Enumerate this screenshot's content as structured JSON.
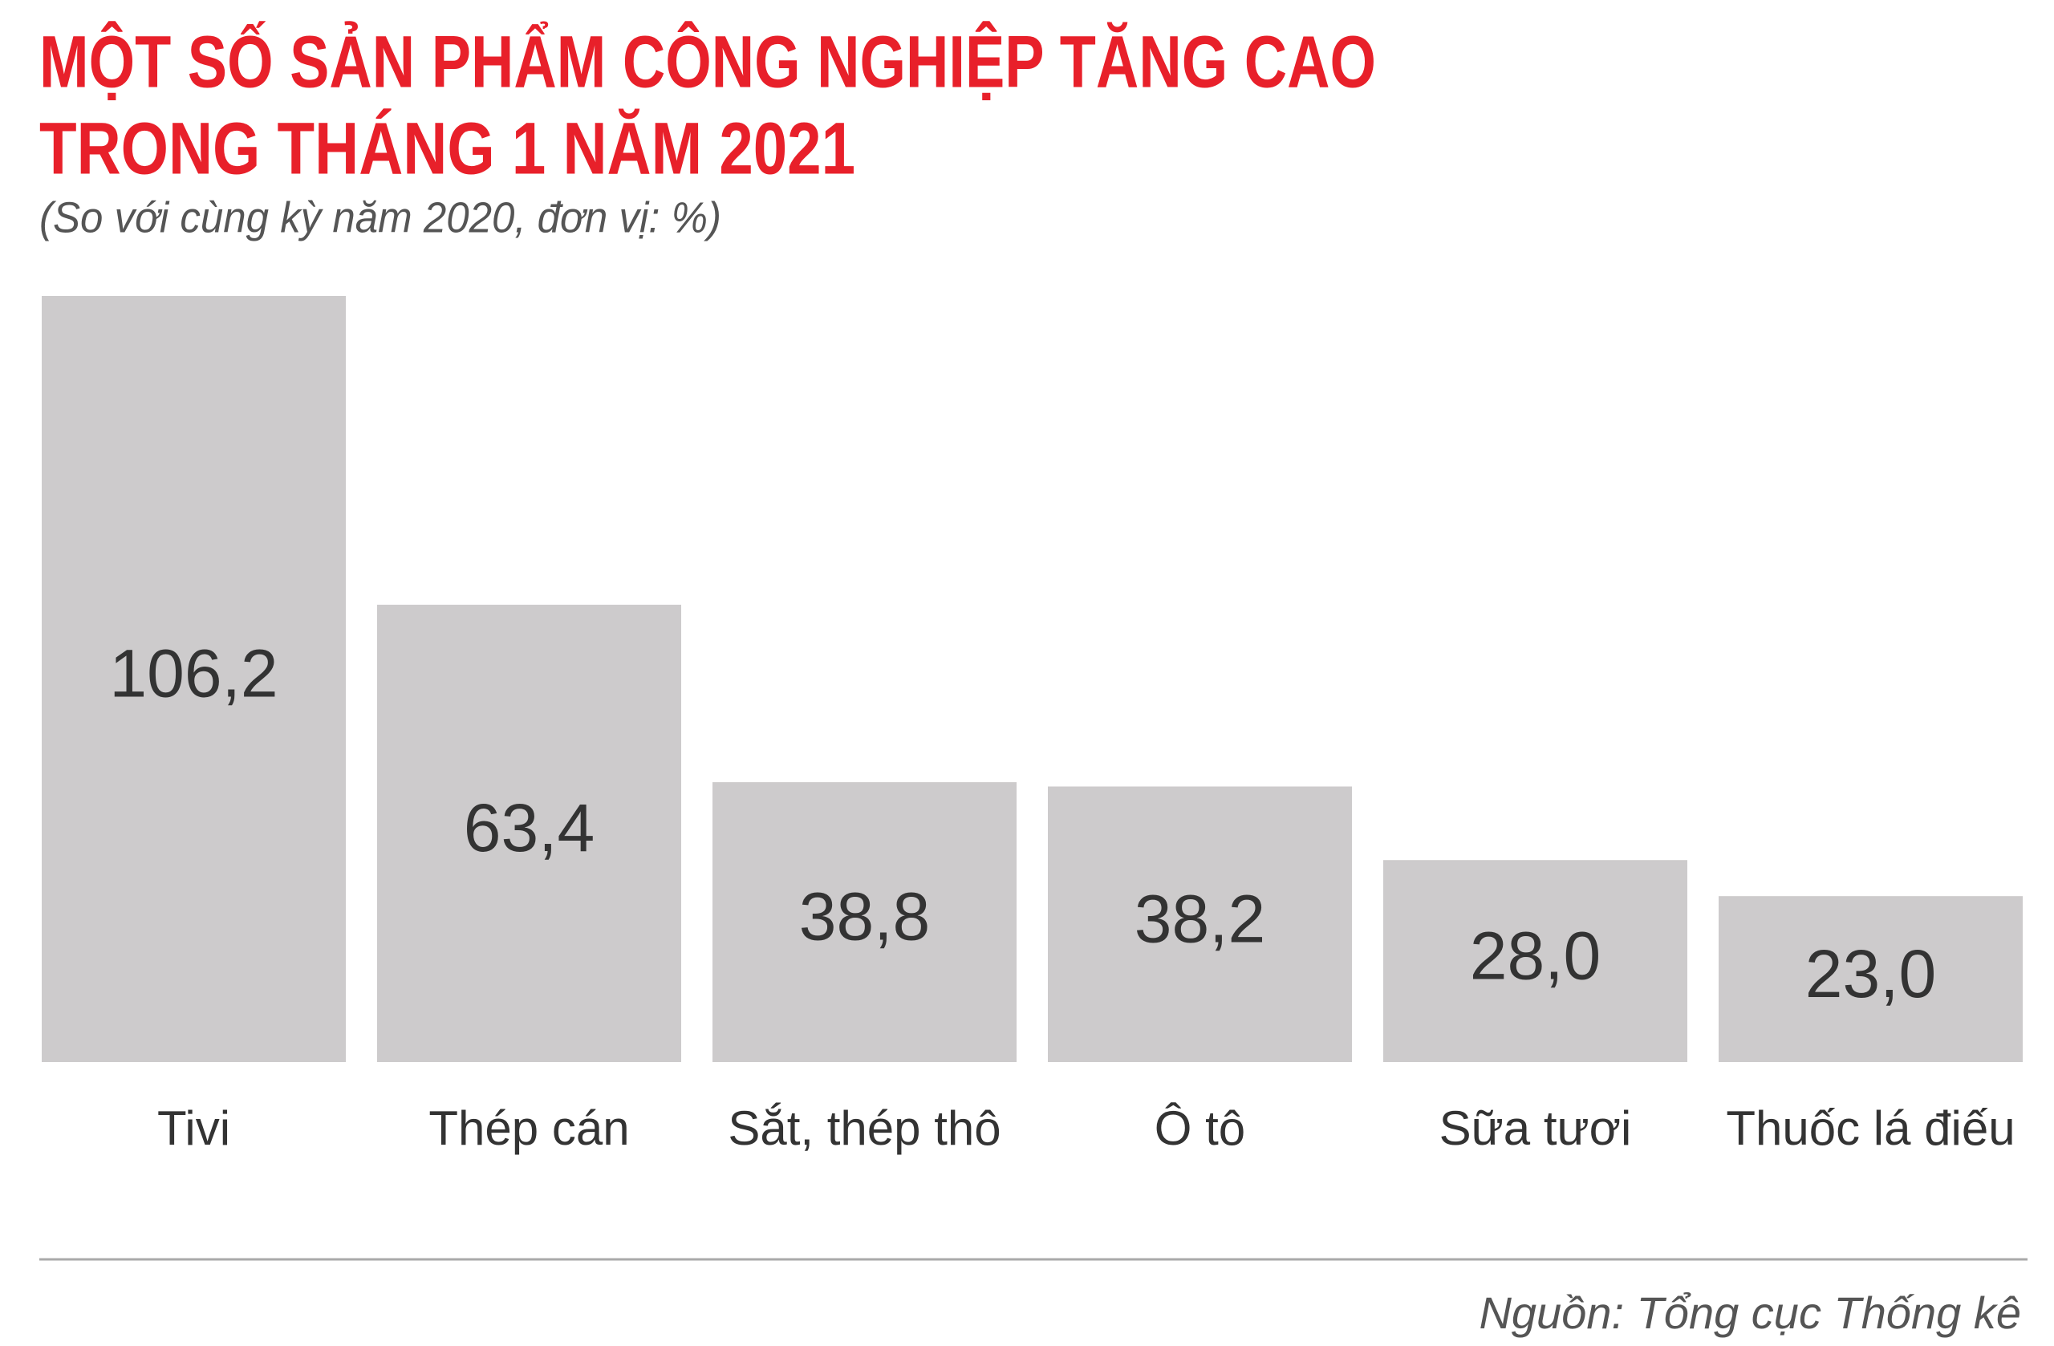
{
  "chart_data": {
    "type": "bar",
    "title": [
      "MỘT SỐ SẢN PHẨM CÔNG NGHIỆP TĂNG CAO",
      "TRONG THÁNG 1 NĂM 2021"
    ],
    "subtitle": "(So với cùng kỳ năm 2020, đơn vị: %)",
    "categories": [
      "Tivi",
      "Thép cán",
      "Sắt, thép thô",
      "Ô tô",
      "Sữa tươi",
      "Thuốc lá điếu"
    ],
    "values": [
      106.2,
      63.4,
      38.8,
      38.2,
      28.0,
      23.0
    ],
    "value_labels": [
      "106,2",
      "63,4",
      "38,8",
      "38,2",
      "28,0",
      "23,0"
    ],
    "color": "#cdcbcc",
    "source": "Nguồn: Tổng cục Thống kê"
  }
}
